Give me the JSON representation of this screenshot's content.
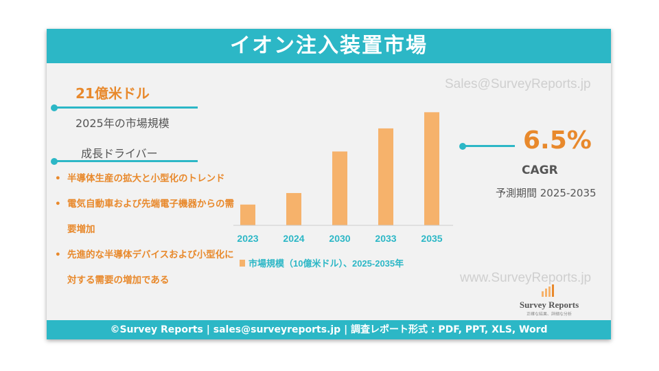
{
  "header": {
    "title": "イオン注入装置市場"
  },
  "watermarks": {
    "top": "Sales@SurveyReports.jp",
    "bottom": "www.SurveyReports.jp"
  },
  "market": {
    "value": "21億米ドル",
    "label": "2025年の市場規模"
  },
  "drivers": {
    "heading": "成長ドライバー",
    "items": [
      "半導体生産の拡大と小型化のトレンド",
      "電気自動車および先端電子機器からの需要増加",
      "先進的な半導体デバイスおよび小型化に対する需要の増加である"
    ]
  },
  "cagr": {
    "value": "6.5%",
    "label": "CAGR",
    "period": "予測期間 2025-2035"
  },
  "logo": {
    "name": "Survey Reports",
    "tagline": "正確な結果、詳細な分析"
  },
  "footer": {
    "text": "©Survey Reports | sales@surveyreports.jp |  調査レポート形式 : PDF, PPT, XLS, Word"
  },
  "colors": {
    "accent": "#2cb7c6",
    "bar": "#f6b26b",
    "orange_text": "#e8892c"
  },
  "chart_data": {
    "type": "bar",
    "categories": [
      "2023",
      "2024",
      "2030",
      "2033",
      "2035"
    ],
    "values": [
      0.9,
      1.4,
      3.2,
      4.2,
      4.9
    ],
    "legend": "市場規模（10億米ドル）、2025-2035年",
    "legend_position": "bottom",
    "grid": false
  }
}
